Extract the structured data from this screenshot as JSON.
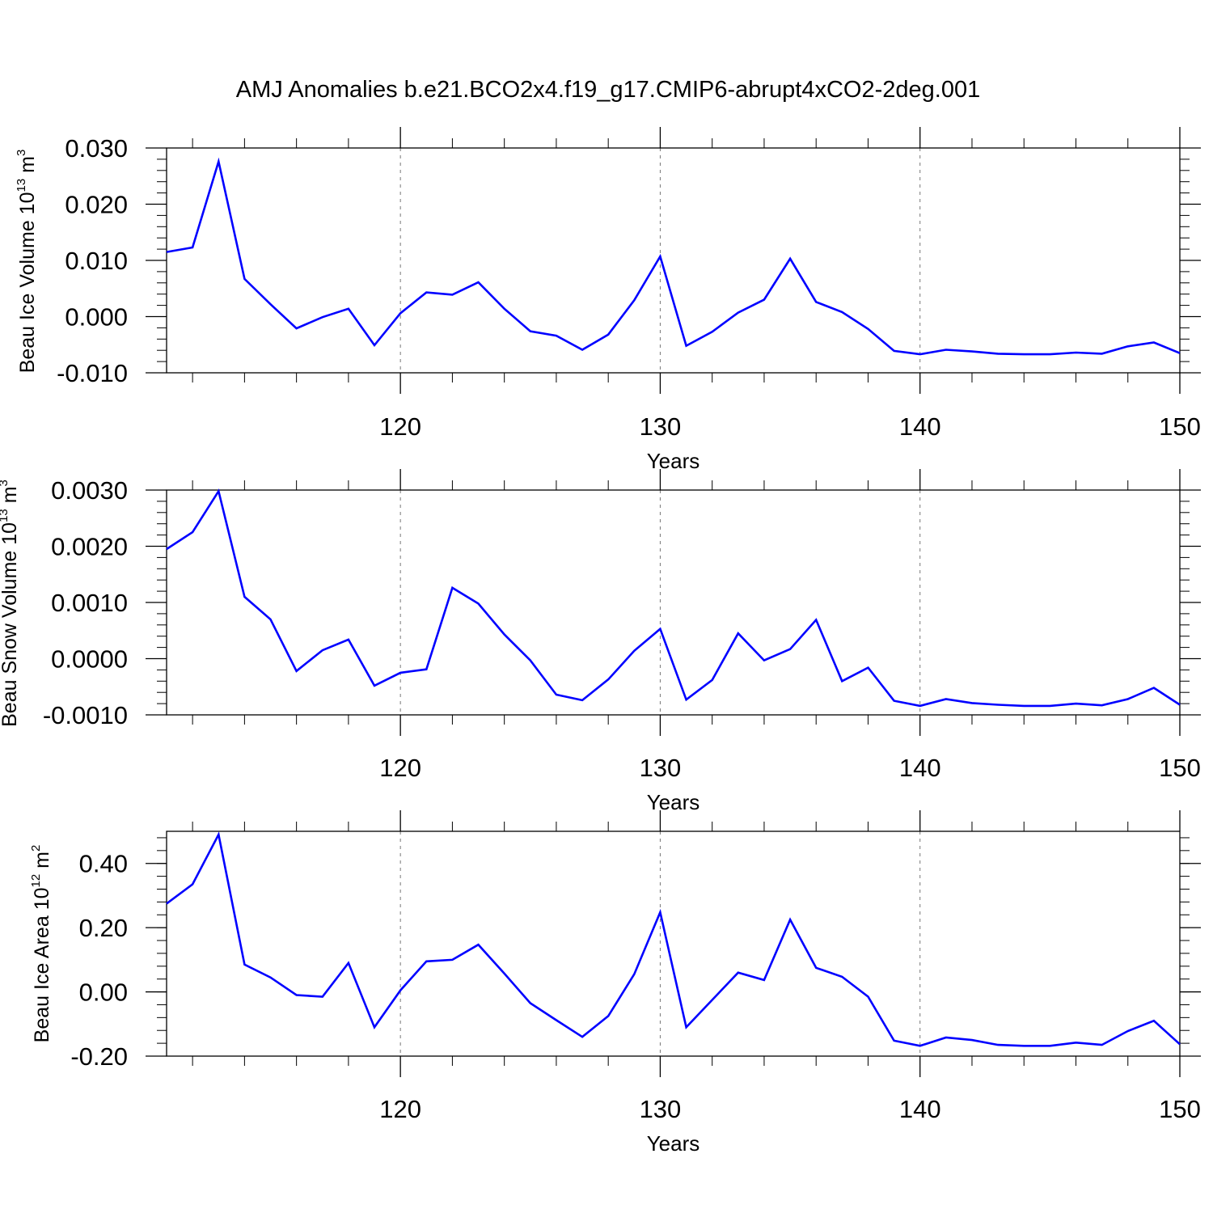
{
  "chart_title": "AMJ Anomalies b.e21.BCO2x4.f19_g17.CMIP6-abrupt4xCO2-2deg.001",
  "line_color": "#0000ff",
  "chart_data": [
    {
      "type": "line",
      "xlabel": "Years",
      "ylabel": {
        "main": "Beau Ice Volume 10",
        "exponent": "13",
        "unit": " m",
        "unit_exponent": "3"
      },
      "xlim": [
        111,
        150
      ],
      "ylim": [
        -0.01,
        0.03
      ],
      "yticks": [
        -0.01,
        0.0,
        0.01,
        0.02,
        0.03
      ],
      "ytick_labels": [
        "-0.010",
        "0.000",
        "0.010",
        "0.020",
        "0.030"
      ],
      "xticks": [
        120,
        130,
        140,
        150
      ],
      "xtick_labels": [
        "120",
        "130",
        "140",
        "150"
      ],
      "grid": "vertical dashed at major x ticks",
      "x": [
        111,
        112,
        113,
        114,
        115,
        116,
        117,
        118,
        119,
        120,
        121,
        122,
        123,
        124,
        125,
        126,
        127,
        128,
        129,
        130,
        131,
        132,
        133,
        134,
        135,
        136,
        137,
        138,
        139,
        140,
        141,
        142,
        143,
        144,
        145,
        146,
        147,
        148,
        149,
        150
      ],
      "values": [
        0.0115,
        0.0123,
        0.0276,
        0.0067,
        0.0022,
        -0.0021,
        -0.0001,
        0.0014,
        -0.0051,
        0.0006,
        0.0043,
        0.0039,
        0.0061,
        0.0014,
        -0.0026,
        -0.0034,
        -0.0059,
        -0.0032,
        0.0029,
        0.0107,
        -0.0052,
        -0.0027,
        0.0007,
        0.003,
        0.0103,
        0.0026,
        0.0008,
        -0.0022,
        -0.0061,
        -0.0067,
        -0.0059,
        -0.0062,
        -0.0066,
        -0.0067,
        -0.0067,
        -0.0064,
        -0.0066,
        -0.0053,
        -0.0046,
        -0.0065
      ]
    },
    {
      "type": "line",
      "xlabel": "Years",
      "ylabel": {
        "main": "Beau Snow Volume 10",
        "exponent": "13",
        "unit": " m",
        "unit_exponent": "3"
      },
      "xlim": [
        111,
        150
      ],
      "ylim": [
        -0.001,
        0.003
      ],
      "yticks": [
        -0.001,
        0.0,
        0.001,
        0.002,
        0.003
      ],
      "ytick_labels": [
        "-0.0010",
        "0.0000",
        "0.0010",
        "0.0020",
        "0.0030"
      ],
      "xticks": [
        120,
        130,
        140,
        150
      ],
      "xtick_labels": [
        "120",
        "130",
        "140",
        "150"
      ],
      "grid": "vertical dashed at major x ticks",
      "x": [
        111,
        112,
        113,
        114,
        115,
        116,
        117,
        118,
        119,
        120,
        121,
        122,
        123,
        124,
        125,
        126,
        127,
        128,
        129,
        130,
        131,
        132,
        133,
        134,
        135,
        136,
        137,
        138,
        139,
        140,
        141,
        142,
        143,
        144,
        145,
        146,
        147,
        148,
        149,
        150
      ],
      "values": [
        0.00195,
        0.00225,
        0.00298,
        0.0011,
        0.0007,
        -0.00022,
        0.00015,
        0.00034,
        -0.00048,
        -0.00025,
        -0.00019,
        0.00126,
        0.00098,
        0.00043,
        -3e-05,
        -0.00064,
        -0.00074,
        -0.00037,
        0.00014,
        0.00053,
        -0.00073,
        -0.00038,
        0.00045,
        -3e-05,
        0.00017,
        0.00069,
        -0.0004,
        -0.00016,
        -0.00075,
        -0.00084,
        -0.00072,
        -0.00079,
        -0.00082,
        -0.00084,
        -0.00084,
        -0.0008,
        -0.00083,
        -0.00072,
        -0.00052,
        -0.00082
      ]
    },
    {
      "type": "line",
      "xlabel": "Years",
      "ylabel": {
        "main": "Beau Ice Area 10",
        "exponent": "12",
        "unit": " m",
        "unit_exponent": "2"
      },
      "xlim": [
        111,
        150
      ],
      "ylim": [
        -0.2,
        0.5
      ],
      "yticks": [
        -0.2,
        0.0,
        0.2,
        0.4
      ],
      "ytick_labels": [
        "-0.20",
        "0.00",
        "0.20",
        "0.40"
      ],
      "xticks": [
        120,
        130,
        140,
        150
      ],
      "xtick_labels": [
        "120",
        "130",
        "140",
        "150"
      ],
      "grid": "vertical dashed at major x ticks",
      "x": [
        111,
        112,
        113,
        114,
        115,
        116,
        117,
        118,
        119,
        120,
        121,
        122,
        123,
        124,
        125,
        126,
        127,
        128,
        129,
        130,
        131,
        132,
        133,
        134,
        135,
        136,
        137,
        138,
        139,
        140,
        141,
        142,
        143,
        144,
        145,
        146,
        147,
        148,
        149,
        150
      ],
      "values": [
        0.275,
        0.335,
        0.49,
        0.085,
        0.045,
        -0.01,
        -0.015,
        0.09,
        -0.11,
        0.005,
        0.095,
        0.1,
        0.147,
        0.057,
        -0.035,
        -0.088,
        -0.14,
        -0.075,
        0.055,
        0.248,
        -0.11,
        -0.025,
        0.06,
        0.037,
        0.225,
        0.075,
        0.047,
        -0.015,
        -0.152,
        -0.168,
        -0.142,
        -0.15,
        -0.165,
        -0.168,
        -0.168,
        -0.158,
        -0.165,
        -0.122,
        -0.09,
        -0.163
      ]
    }
  ]
}
